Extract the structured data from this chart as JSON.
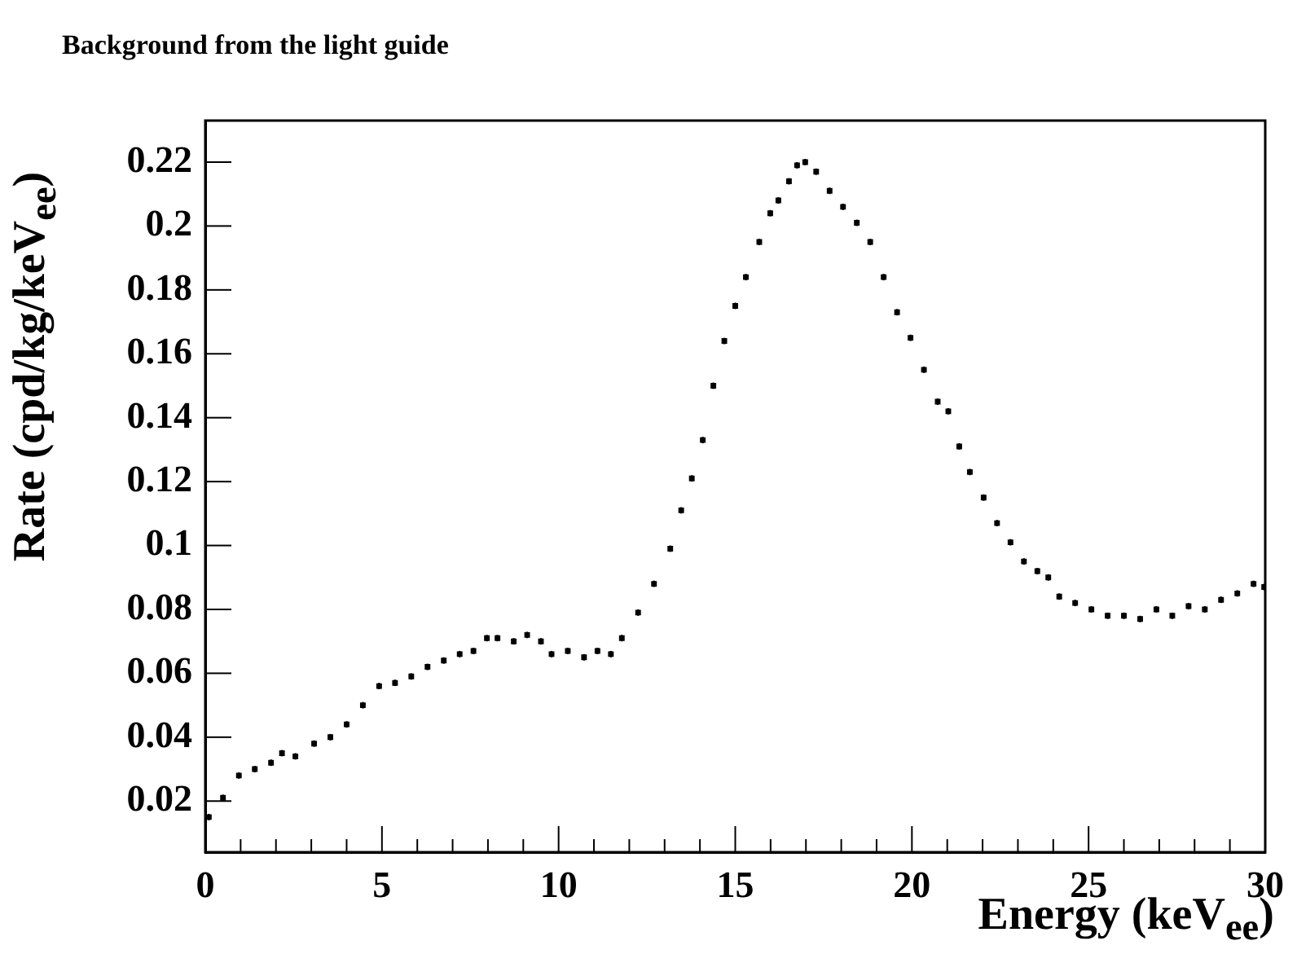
{
  "chart_data": {
    "type": "scatter",
    "title": "Background from the light guide",
    "xlabel": "Energy (keV$_{ee}$)",
    "ylabel": "Rate (cpd/kg/keV$_{ee}$)",
    "marker": "square",
    "series": [
      {
        "color": "#000000",
        "x": [
          0.1,
          0.5,
          0.95,
          1.4,
          1.86,
          2.17,
          2.55,
          3.08,
          3.54,
          4.0,
          4.46,
          4.92,
          5.37,
          5.83,
          6.29,
          6.75,
          7.2,
          7.59,
          7.97,
          8.27,
          8.73,
          9.11,
          9.5,
          9.8,
          10.26,
          10.72,
          11.1,
          11.48,
          11.79,
          12.25,
          12.7,
          13.16,
          13.47,
          13.77,
          14.08,
          14.38,
          14.69,
          15.0,
          15.3,
          15.68,
          15.99,
          16.22,
          16.52,
          16.75,
          16.98,
          17.29,
          17.67,
          18.05,
          18.44,
          18.82,
          19.2,
          19.58,
          19.96,
          20.34,
          20.73,
          21.03,
          21.34,
          21.64,
          22.03,
          22.41,
          22.79,
          23.17,
          23.55,
          23.86,
          24.17,
          24.62,
          25.08,
          25.54,
          26.0,
          26.46,
          26.92,
          27.37,
          27.83,
          28.29,
          28.75,
          29.21,
          29.67,
          29.97
        ],
        "values": [
          0.015,
          0.021,
          0.028,
          0.03,
          0.032,
          0.035,
          0.034,
          0.038,
          0.04,
          0.044,
          0.05,
          0.056,
          0.057,
          0.059,
          0.062,
          0.064,
          0.066,
          0.067,
          0.071,
          0.071,
          0.07,
          0.072,
          0.07,
          0.066,
          0.067,
          0.065,
          0.067,
          0.066,
          0.071,
          0.079,
          0.088,
          0.099,
          0.111,
          0.121,
          0.133,
          0.15,
          0.164,
          0.175,
          0.184,
          0.195,
          0.204,
          0.208,
          0.214,
          0.219,
          0.22,
          0.217,
          0.211,
          0.206,
          0.201,
          0.195,
          0.184,
          0.173,
          0.165,
          0.155,
          0.145,
          0.142,
          0.131,
          0.123,
          0.115,
          0.107,
          0.101,
          0.095,
          0.092,
          0.09,
          0.084,
          0.082,
          0.08,
          0.078,
          0.078,
          0.077,
          0.08,
          0.078,
          0.081,
          0.08,
          0.083,
          0.085,
          0.088,
          0.087
        ],
        "errors": [
          0.001,
          0.001,
          0.001,
          0.001,
          0.001,
          0.001,
          0.001,
          0.001,
          0.001,
          0.001,
          0.001,
          0.001,
          0.001,
          0.001,
          0.001,
          0.001,
          0.001,
          0.001,
          0.001,
          0.001,
          0.001,
          0.001,
          0.001,
          0.001,
          0.001,
          0.001,
          0.001,
          0.001,
          0.001,
          0.001,
          0.001,
          0.001,
          0.001,
          0.001,
          0.001,
          0.001,
          0.001,
          0.001,
          0.001,
          0.001,
          0.001,
          0.001,
          0.001,
          0.001,
          0.001,
          0.001,
          0.001,
          0.001,
          0.001,
          0.001,
          0.001,
          0.001,
          0.001,
          0.001,
          0.001,
          0.001,
          0.001,
          0.001,
          0.001,
          0.001,
          0.001,
          0.001,
          0.001,
          0.001,
          0.001,
          0.001,
          0.001,
          0.001,
          0.001,
          0.001,
          0.001,
          0.001,
          0.001,
          0.001,
          0.001,
          0.001,
          0.001,
          0.001
        ],
        "xerrors": [
          0.05,
          0.05,
          0.05,
          0.05,
          0.05,
          0.05,
          0.05,
          0.05,
          0.05,
          0.05,
          0.05,
          0.05,
          0.05,
          0.05,
          0.05,
          0.05,
          0.05,
          0.05,
          0.05,
          0.05,
          0.05,
          0.05,
          0.05,
          0.05,
          0.05,
          0.05,
          0.05,
          0.05,
          0.05,
          0.05,
          0.05,
          0.05,
          0.05,
          0.05,
          0.05,
          0.05,
          0.05,
          0.05,
          0.05,
          0.05,
          0.05,
          0.05,
          0.05,
          0.05,
          0.05,
          0.05,
          0.05,
          0.05,
          0.05,
          0.05,
          0.05,
          0.05,
          0.05,
          0.05,
          0.05,
          0.05,
          0.05,
          0.05,
          0.05,
          0.05,
          0.05,
          0.05,
          0.05,
          0.05,
          0.05,
          0.05,
          0.05,
          0.05,
          0.05,
          0.05,
          0.05,
          0.05,
          0.05,
          0.05,
          0.05,
          0.05,
          0.05,
          0.05
        ]
      }
    ],
    "xlim": [
      0,
      30
    ],
    "ylim": [
      0.004,
      0.233
    ],
    "xticks": [
      0,
      {
        "value": 1,
        "label": null
      },
      {
        "value": 2,
        "label": null
      },
      {
        "value": 3,
        "label": null
      },
      {
        "value": 4,
        "label": null
      },
      5,
      {
        "value": 6,
        "label": null
      },
      {
        "value": 7,
        "label": null
      },
      {
        "value": 8,
        "label": null
      },
      {
        "value": 9,
        "label": null
      },
      10,
      {
        "value": 11,
        "label": null
      },
      {
        "value": 12,
        "label": null
      },
      {
        "value": 13,
        "label": null
      },
      {
        "value": 14,
        "label": null
      },
      15,
      {
        "value": 16,
        "label": null
      },
      {
        "value": 17,
        "label": null
      },
      {
        "value": 18,
        "label": null
      },
      {
        "value": 19,
        "label": null
      },
      20,
      {
        "value": 21,
        "label": null
      },
      {
        "value": 22,
        "label": null
      },
      {
        "value": 23,
        "label": null
      },
      {
        "value": 24,
        "label": null
      },
      25,
      {
        "value": 26,
        "label": null
      },
      {
        "value": 27,
        "label": null
      },
      {
        "value": 28,
        "label": null
      },
      {
        "value": 29,
        "label": null
      },
      30
    ],
    "yticks": [
      0.02,
      0.04,
      0.06,
      0.08,
      0.1,
      0.12,
      0.14,
      0.16,
      0.18,
      0.2,
      0.22
    ]
  }
}
